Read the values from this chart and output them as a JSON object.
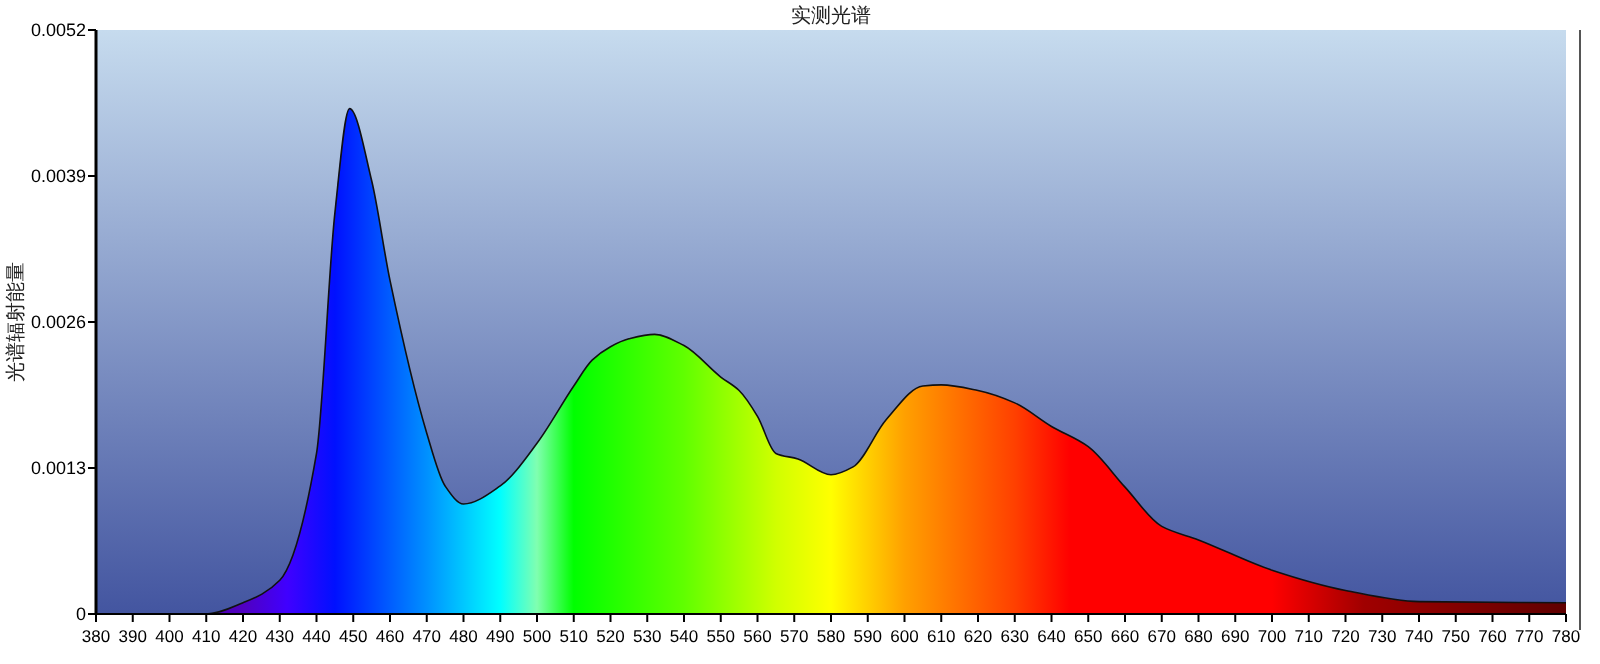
{
  "chart_data": {
    "type": "area",
    "title": "实测光谱",
    "ylabel": "光谱辐射能量",
    "x": [
      380,
      390,
      400,
      410,
      420,
      430,
      440,
      445,
      449,
      455,
      460,
      470,
      475,
      480,
      490,
      500,
      510,
      515,
      520,
      525,
      532,
      540,
      550,
      555,
      560,
      565,
      571,
      580,
      586,
      595,
      605,
      610,
      620,
      630,
      640,
      650,
      660,
      670,
      680,
      700,
      720,
      740,
      780
    ],
    "values": [
      0,
      0,
      0,
      0,
      0.0001,
      0.0003,
      0.00143,
      0.00357,
      0.0045,
      0.00386,
      0.00297,
      0.00161,
      0.00114,
      0.00098,
      0.00114,
      0.00152,
      0.00203,
      0.00226,
      0.00238,
      0.00245,
      0.00249,
      0.00239,
      0.00211,
      0.00199,
      0.00176,
      0.00143,
      0.00138,
      0.00124,
      0.00131,
      0.00173,
      0.00203,
      0.00204,
      0.00199,
      0.00188,
      0.00167,
      0.00149,
      0.00113,
      0.00078,
      0.00066,
      0.00039,
      0.00021,
      0.00011,
      0.0001
    ],
    "xlim": [
      380,
      780
    ],
    "ylim": [
      0,
      0.0052
    ],
    "xticks": [
      380,
      390,
      400,
      410,
      420,
      430,
      440,
      450,
      460,
      470,
      480,
      490,
      500,
      510,
      520,
      530,
      540,
      550,
      560,
      570,
      580,
      590,
      600,
      610,
      620,
      630,
      640,
      650,
      660,
      670,
      680,
      690,
      700,
      710,
      720,
      730,
      740,
      750,
      760,
      770,
      780
    ],
    "yticks": [
      0,
      0.0013,
      0.0026,
      0.0039,
      0.0052
    ],
    "grid": false
  }
}
